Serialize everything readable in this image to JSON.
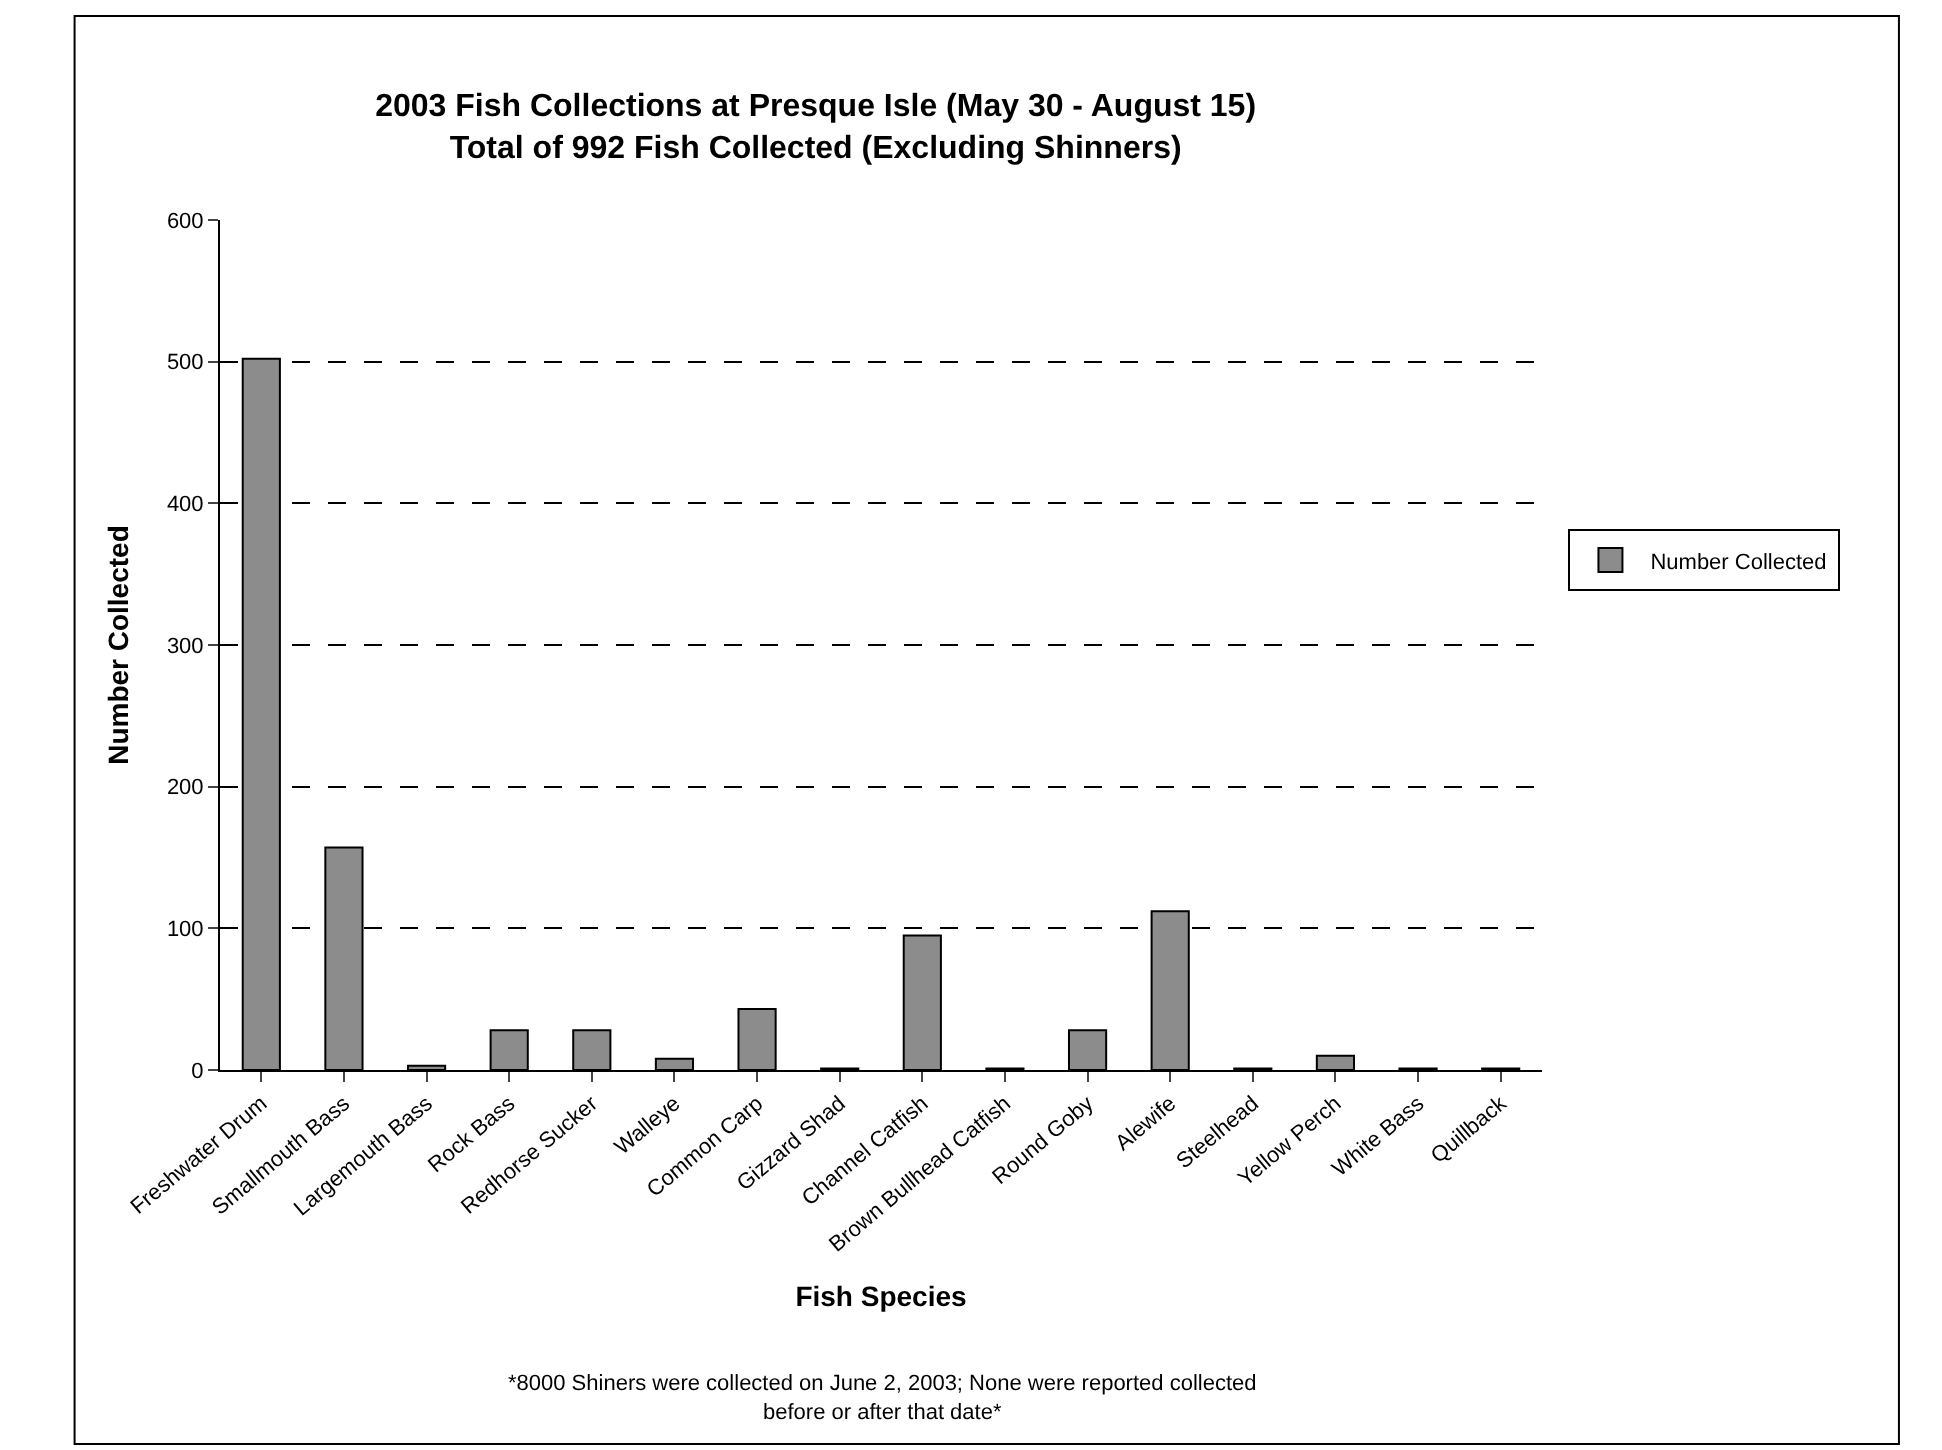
{
  "chart_data": {
    "type": "bar",
    "title": "2003 Fish Collections at Presque Isle (May 30 - August 15)",
    "subtitle": "Total of 992 Fish Collected (Excluding Shinners)",
    "xlabel": "Fish Species",
    "ylabel": "Number Collected",
    "categories": [
      "Freshwater Drum",
      "Smallmouth Bass",
      "Largemouth Bass",
      "Rock Bass",
      "Redhorse Sucker",
      "Walleye",
      "Common Carp",
      "Gizzard Shad",
      "Channel Catfish",
      "Brown Bullhead Catfish",
      "Round Goby",
      "Alewife",
      "Steelhead",
      "Yellow Perch",
      "White Bass",
      "Quillback"
    ],
    "series": [
      {
        "name": "Number Collected",
        "color": "#8c8c8c",
        "values": [
          502,
          157,
          3,
          28,
          28,
          8,
          43,
          1,
          95,
          1,
          28,
          112,
          1,
          10,
          1,
          1
        ]
      }
    ],
    "ylim": [
      0,
      600
    ],
    "yticks": [
      0,
      100,
      200,
      300,
      400,
      500,
      600
    ],
    "grid": "y",
    "legend": "right",
    "line_style": "dashed",
    "annotations": [
      "*8000 Shiners were collected on June 2, 2003; None were reported collected before or after that date*"
    ]
  }
}
